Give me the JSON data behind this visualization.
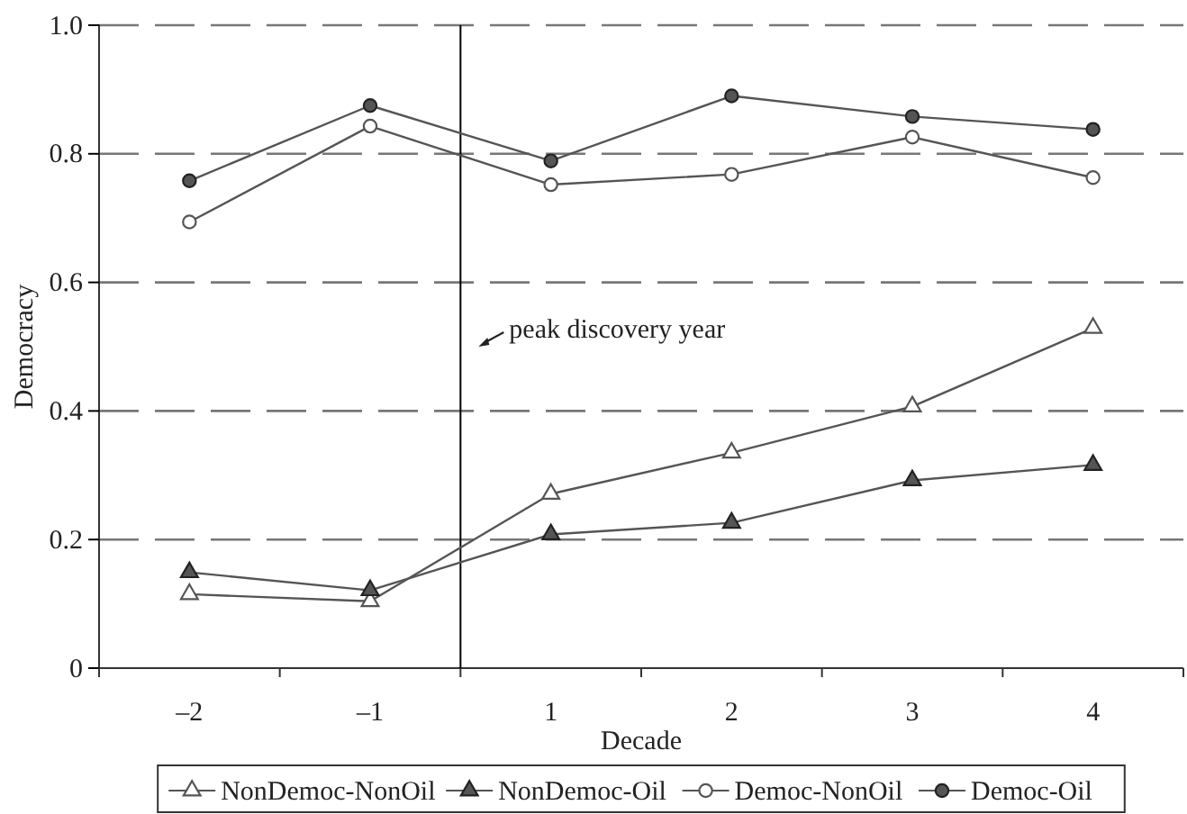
{
  "chart_data": {
    "type": "line",
    "xlabel": "Decade",
    "ylabel": "Democracy",
    "categories": [
      "–2",
      "–1",
      "1",
      "2",
      "3",
      "4"
    ],
    "series": [
      {
        "name": "NonDemoc-NonOil",
        "color": "#555555",
        "marker": "triangle-open",
        "values": [
          0.115,
          0.104,
          0.271,
          0.335,
          0.407,
          0.529
        ]
      },
      {
        "name": "NonDemoc-Oil",
        "color": "#555555",
        "marker": "triangle",
        "values": [
          0.149,
          0.121,
          0.208,
          0.226,
          0.292,
          0.316
        ]
      },
      {
        "name": "Democ-NonOil",
        "color": "#555555",
        "marker": "circle-open",
        "values": [
          0.694,
          0.843,
          0.752,
          0.768,
          0.826,
          0.763
        ]
      },
      {
        "name": "Democ-Oil",
        "color": "#555555",
        "marker": "circle",
        "values": [
          0.758,
          0.875,
          0.789,
          0.89,
          0.858,
          0.838
        ]
      }
    ],
    "ylim": [
      0,
      1
    ],
    "yticks": [
      0,
      0.2,
      0.4,
      0.6,
      0.8,
      {
        "value": 1,
        "label": "1.0"
      }
    ],
    "grid": "y",
    "legend": "bottom",
    "line_style": "solid",
    "annotations": [
      "peak discovery year"
    ],
    "ref_lines": [
      {
        "axis": "x",
        "value": "1",
        "color": "#000000"
      }
    ]
  }
}
